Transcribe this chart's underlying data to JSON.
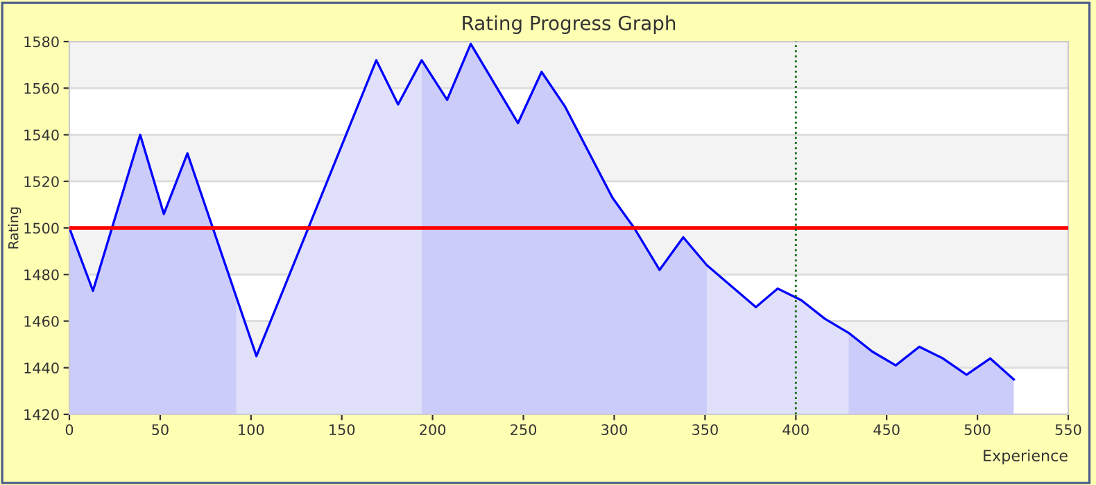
{
  "chart_data": {
    "type": "line",
    "title": "Rating Progress Graph",
    "xlabel": "Experience",
    "ylabel": "Rating",
    "xlim": [
      0,
      550
    ],
    "ylim": [
      1420,
      1580
    ],
    "xticks": [
      0,
      50,
      100,
      150,
      200,
      250,
      300,
      350,
      400,
      450,
      500,
      550
    ],
    "yticks": [
      1420,
      1440,
      1460,
      1480,
      1500,
      1520,
      1540,
      1560,
      1580
    ],
    "grid": "y",
    "marker": "none",
    "line_style": "solid",
    "series": [
      {
        "type": "area",
        "color": "#ccccfa",
        "x": [
          0,
          13,
          39,
          52,
          65,
          92
        ],
        "values": [
          1500,
          1473,
          1540,
          1506,
          1532,
          1470
        ]
      },
      {
        "type": "area",
        "color": "#e0e0fa",
        "x": [
          92,
          103,
          169,
          181,
          194
        ],
        "values": [
          1470,
          1445,
          1572,
          1553,
          1572
        ]
      },
      {
        "type": "area",
        "color": "#ccccfa",
        "x": [
          194,
          208,
          221,
          247,
          260,
          273,
          299,
          311,
          325,
          338,
          351
        ],
        "values": [
          1572,
          1555,
          1579,
          1545,
          1567,
          1552,
          1513,
          1500,
          1482,
          1496,
          1484
        ]
      },
      {
        "type": "area",
        "color": "#e0e0fa",
        "x": [
          351,
          378,
          390,
          403,
          416,
          429
        ],
        "values": [
          1484,
          1466,
          1474,
          1469,
          1461,
          1455
        ]
      },
      {
        "type": "area",
        "color": "#ccccfa",
        "x": [
          429,
          442,
          455,
          468,
          481,
          494,
          507,
          520
        ],
        "values": [
          1455,
          1447,
          1441,
          1449,
          1444,
          1437,
          1444,
          1435
        ]
      },
      {
        "color": "#0000ff",
        "x": [
          0,
          13,
          39,
          52,
          65,
          103,
          169,
          181,
          194,
          208,
          221,
          247,
          260,
          273,
          299,
          311,
          325,
          338,
          351,
          378,
          390,
          403,
          416,
          429,
          442,
          455,
          468,
          481,
          494,
          507,
          520
        ],
        "values": [
          1500,
          1473,
          1540,
          1506,
          1532,
          1445,
          1572,
          1553,
          1572,
          1555,
          1579,
          1545,
          1567,
          1552,
          1513,
          1500,
          1482,
          1496,
          1484,
          1466,
          1474,
          1469,
          1461,
          1455,
          1447,
          1441,
          1449,
          1444,
          1437,
          1444,
          1435
        ]
      }
    ],
    "ref_lines": [
      {
        "axis": "y",
        "value": 1500,
        "color": "#ff0000",
        "line_style": "solid"
      },
      {
        "axis": "x",
        "value": 400,
        "color": "#006600",
        "line_style": "dotted"
      }
    ]
  }
}
